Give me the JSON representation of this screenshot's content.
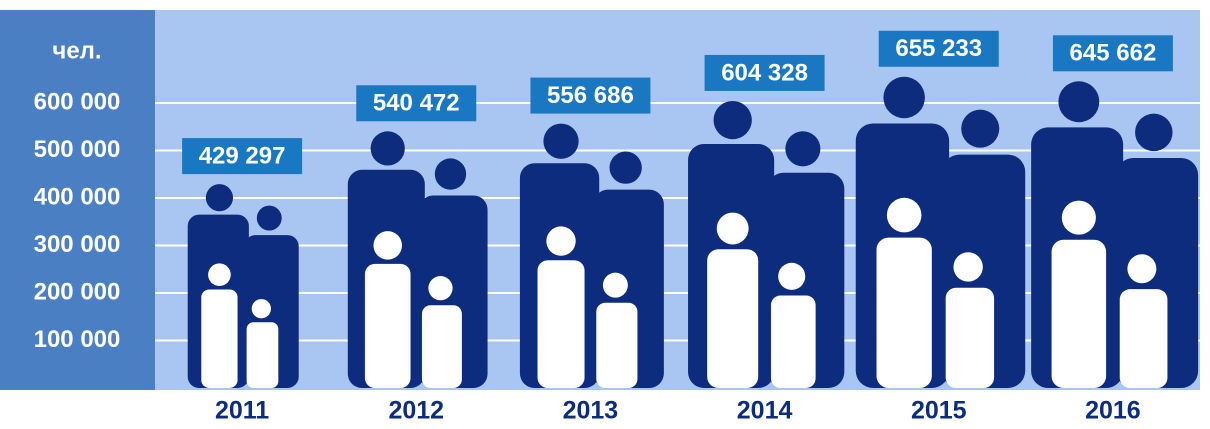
{
  "chart_data": {
    "type": "pictogram",
    "y_label": "чел.",
    "categories": [
      "2011",
      "2012",
      "2013",
      "2014",
      "2015",
      "2016"
    ],
    "values": [
      429297,
      540472,
      556686,
      604328,
      655233,
      645662
    ],
    "value_labels": [
      "429 297",
      "540 472",
      "556 686",
      "604 328",
      "655 233",
      "645 662"
    ],
    "color": "#0d2c7e",
    "child_color": "#ffffff",
    "label_box_color": "#1a78c2",
    "ylim": [
      0,
      800000
    ],
    "yticks": [
      {
        "value": 100000,
        "label": "100 000"
      },
      {
        "value": 200000,
        "label": "200 000"
      },
      {
        "value": 300000,
        "label": "300 000"
      },
      {
        "value": 400000,
        "label": "400 000"
      },
      {
        "value": 500000,
        "label": "500 000"
      },
      {
        "value": 600000,
        "label": "600 000"
      }
    ],
    "grid": true
  }
}
